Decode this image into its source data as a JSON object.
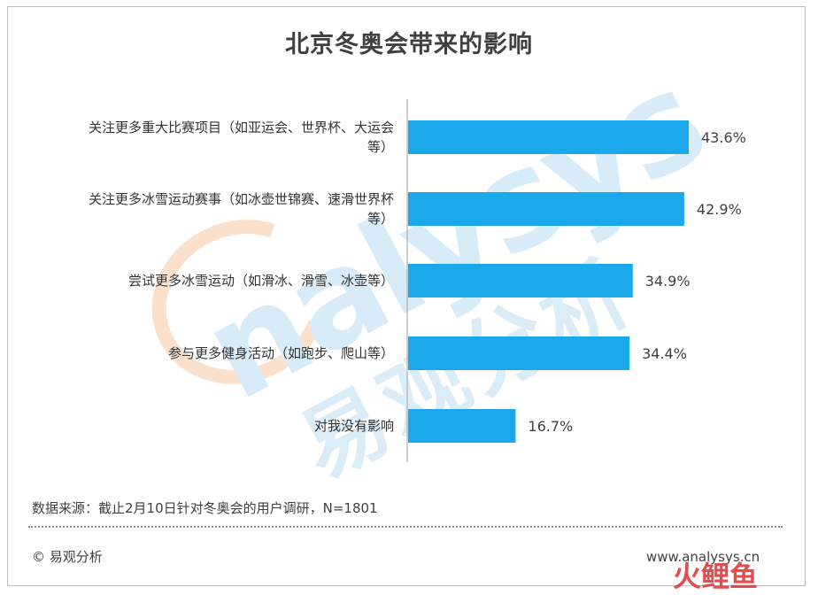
{
  "title": "北京冬奥会带来的影响",
  "chart_data": {
    "type": "bar",
    "orientation": "horizontal",
    "categories": [
      "关注更多重大比赛项目（如亚运会、世界杯、大运会等）",
      "关注更多冰雪运动赛事（如冰壶世锦赛、速滑世界杯等）",
      "尝试更多冰雪运动（如滑冰、滑雪、冰壶等）",
      "参与更多健身活动（如跑步、爬山等）",
      "对我没有影响"
    ],
    "category_lines": [
      [
        "关注更多重大比赛项目（如亚运会、世界杯、大运会",
        "等）"
      ],
      [
        "关注更多冰雪运动赛事（如冰壶世锦赛、速滑世界杯",
        "等）"
      ],
      [
        "尝试更多冰雪运动（如滑冰、滑雪、冰壶等）"
      ],
      [
        "参与更多健身活动（如跑步、爬山等）"
      ],
      [
        "对我没有影响"
      ]
    ],
    "values": [
      43.6,
      42.9,
      34.9,
      34.4,
      16.7
    ],
    "value_labels": [
      "43.6%",
      "42.9%",
      "34.9%",
      "34.4%",
      "16.7%"
    ],
    "title": "北京冬奥会带来的影响",
    "xlim": [
      0,
      50
    ],
    "grid": false,
    "bar_color": "#1ba8ea"
  },
  "footer": {
    "source": "数据来源：截止2月10日针对冬奥会的用户调研，N=1801",
    "brand": "© 易观分析",
    "website": "www.analysys.cn",
    "stamp": "火鲤鱼"
  },
  "watermark": {
    "en": "nalysys",
    "cn": "易观分析"
  }
}
